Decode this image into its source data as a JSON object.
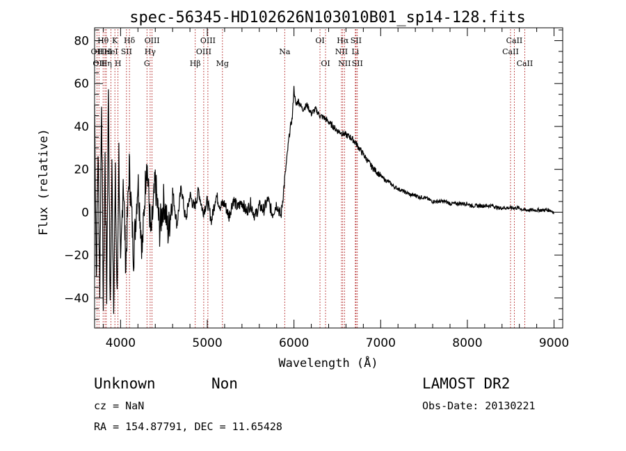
{
  "chart_data": {
    "type": "line",
    "title": "spec-56345-HD102626N103010B01_sp14-128.fits",
    "xlabel": "Wavelength (Å)",
    "ylabel": "Flux (relative)",
    "xlim": [
      3700,
      9100
    ],
    "ylim": [
      -54,
      86
    ],
    "x_ticks": [
      4000,
      5000,
      6000,
      7000,
      8000,
      9000
    ],
    "x_tick_labels": [
      "4000",
      "5000",
      "6000",
      "7000",
      "8000",
      "9000"
    ],
    "y_ticks": [
      -40,
      -20,
      0,
      20,
      40,
      60,
      80
    ],
    "y_tick_labels": [
      "−40",
      "−20",
      "0",
      "20",
      "40",
      "60",
      "80"
    ],
    "grid": false,
    "series": [
      {
        "line_color": "#000000",
        "x": [
          3700,
          3720,
          3740,
          3760,
          3780,
          3800,
          3820,
          3840,
          3860,
          3880,
          3900,
          3920,
          3940,
          3960,
          3980,
          4000,
          4030,
          4060,
          4100,
          4150,
          4200,
          4250,
          4300,
          4350,
          4400,
          4450,
          4500,
          4550,
          4600,
          4650,
          4700,
          4750,
          4800,
          4850,
          4900,
          4950,
          5000,
          5050,
          5100,
          5150,
          5200,
          5250,
          5300,
          5350,
          5400,
          5450,
          5500,
          5550,
          5600,
          5650,
          5700,
          5750,
          5800,
          5850,
          5880,
          5900,
          5920,
          5940,
          5960,
          5980,
          6000,
          6020,
          6050,
          6100,
          6150,
          6200,
          6250,
          6300,
          6350,
          6400,
          6450,
          6500,
          6550,
          6600,
          6650,
          6700,
          6750,
          6800,
          6850,
          6900,
          6950,
          7000,
          7050,
          7100,
          7150,
          7200,
          7250,
          7300,
          7350,
          7400,
          7450,
          7500,
          7550,
          7600,
          7650,
          7700,
          7750,
          7800,
          7850,
          7900,
          7950,
          8000,
          8050,
          8100,
          8150,
          8200,
          8250,
          8300,
          8350,
          8400,
          8450,
          8500,
          8550,
          8600,
          8650,
          8700,
          8750,
          8800,
          8850,
          8900,
          8950,
          9000
        ],
        "y": [
          50,
          -30,
          30,
          -35,
          55,
          -45,
          25,
          -38,
          60,
          -48,
          20,
          -40,
          15,
          -42,
          28,
          -30,
          18,
          -25,
          22,
          -20,
          15,
          -18,
          26,
          -12,
          14,
          -8,
          6,
          -10,
          10,
          -6,
          12,
          -4,
          8,
          2,
          10,
          0,
          5,
          -4,
          8,
          3,
          4,
          -2,
          6,
          2,
          5,
          0,
          4,
          -2,
          3,
          1,
          6,
          -1,
          4,
          -2,
          10,
          18,
          26,
          34,
          40,
          44,
          58,
          50,
          52,
          48,
          50,
          46,
          48,
          45,
          44,
          42,
          40,
          38,
          37,
          36,
          35,
          33,
          30,
          27,
          24,
          21,
          19,
          17,
          15,
          14,
          12,
          11,
          10,
          9,
          8,
          8,
          7,
          7,
          6,
          5,
          5,
          5,
          5,
          4,
          4,
          4,
          4,
          4,
          3,
          3,
          3,
          3,
          3,
          3,
          2,
          2,
          2,
          2,
          2,
          2,
          1,
          1,
          1,
          1,
          1,
          1,
          1,
          0
        ]
      }
    ],
    "spectral_lines": [
      {
        "wavelength": 3727,
        "label": "OII",
        "row": 2
      },
      {
        "wavelength": 3750,
        "label": "OII",
        "row": 3
      },
      {
        "wavelength": 3798,
        "label": "Hθ",
        "row": 1
      },
      {
        "wavelength": 3820,
        "label": "HeI",
        "row": 2
      },
      {
        "wavelength": 3835,
        "label": "Hη",
        "row": 3
      },
      {
        "wavelength": 3889,
        "label": "HeI",
        "row": 2
      },
      {
        "wavelength": 3934,
        "label": "K",
        "row": 1
      },
      {
        "wavelength": 3970,
        "label": "H",
        "row": 3
      },
      {
        "wavelength": 4068,
        "label": "SII",
        "row": 2
      },
      {
        "wavelength": 4102,
        "label": "Hδ",
        "row": 1
      },
      {
        "wavelength": 4304,
        "label": "G",
        "row": 3
      },
      {
        "wavelength": 4341,
        "label": "Hγ",
        "row": 2
      },
      {
        "wavelength": 4363,
        "label": "OIII",
        "row": 1
      },
      {
        "wavelength": 4861,
        "label": "Hβ",
        "row": 3
      },
      {
        "wavelength": 4959,
        "label": "OIII",
        "row": 2
      },
      {
        "wavelength": 5007,
        "label": "OIII",
        "row": 1
      },
      {
        "wavelength": 5175,
        "label": "Mg",
        "row": 3
      },
      {
        "wavelength": 5893,
        "label": "Na",
        "row": 2
      },
      {
        "wavelength": 6300,
        "label": "OI",
        "row": 1
      },
      {
        "wavelength": 6364,
        "label": "OI",
        "row": 3
      },
      {
        "wavelength": 6548,
        "label": "NII",
        "row": 2
      },
      {
        "wavelength": 6563,
        "label": "Hα",
        "row": 1
      },
      {
        "wavelength": 6583,
        "label": "NII",
        "row": 3
      },
      {
        "wavelength": 6708,
        "label": "Li",
        "row": 2
      },
      {
        "wavelength": 6716,
        "label": "SII",
        "row": 1
      },
      {
        "wavelength": 6731,
        "label": "SII",
        "row": 3
      },
      {
        "wavelength": 8498,
        "label": "CaII",
        "row": 2
      },
      {
        "wavelength": 8542,
        "label": "CaII",
        "row": 1
      },
      {
        "wavelength": 8662,
        "label": "CaII",
        "row": 3
      }
    ],
    "line_marker_color": "#b22222"
  },
  "info": {
    "object_class": "Unknown",
    "subclass": "Non",
    "redshift": "cz = NaN",
    "coordinates": "RA = 154.87791, DEC =  11.65428",
    "survey": "LAMOST DR2",
    "obs_date": "Obs-Date: 20130221"
  }
}
